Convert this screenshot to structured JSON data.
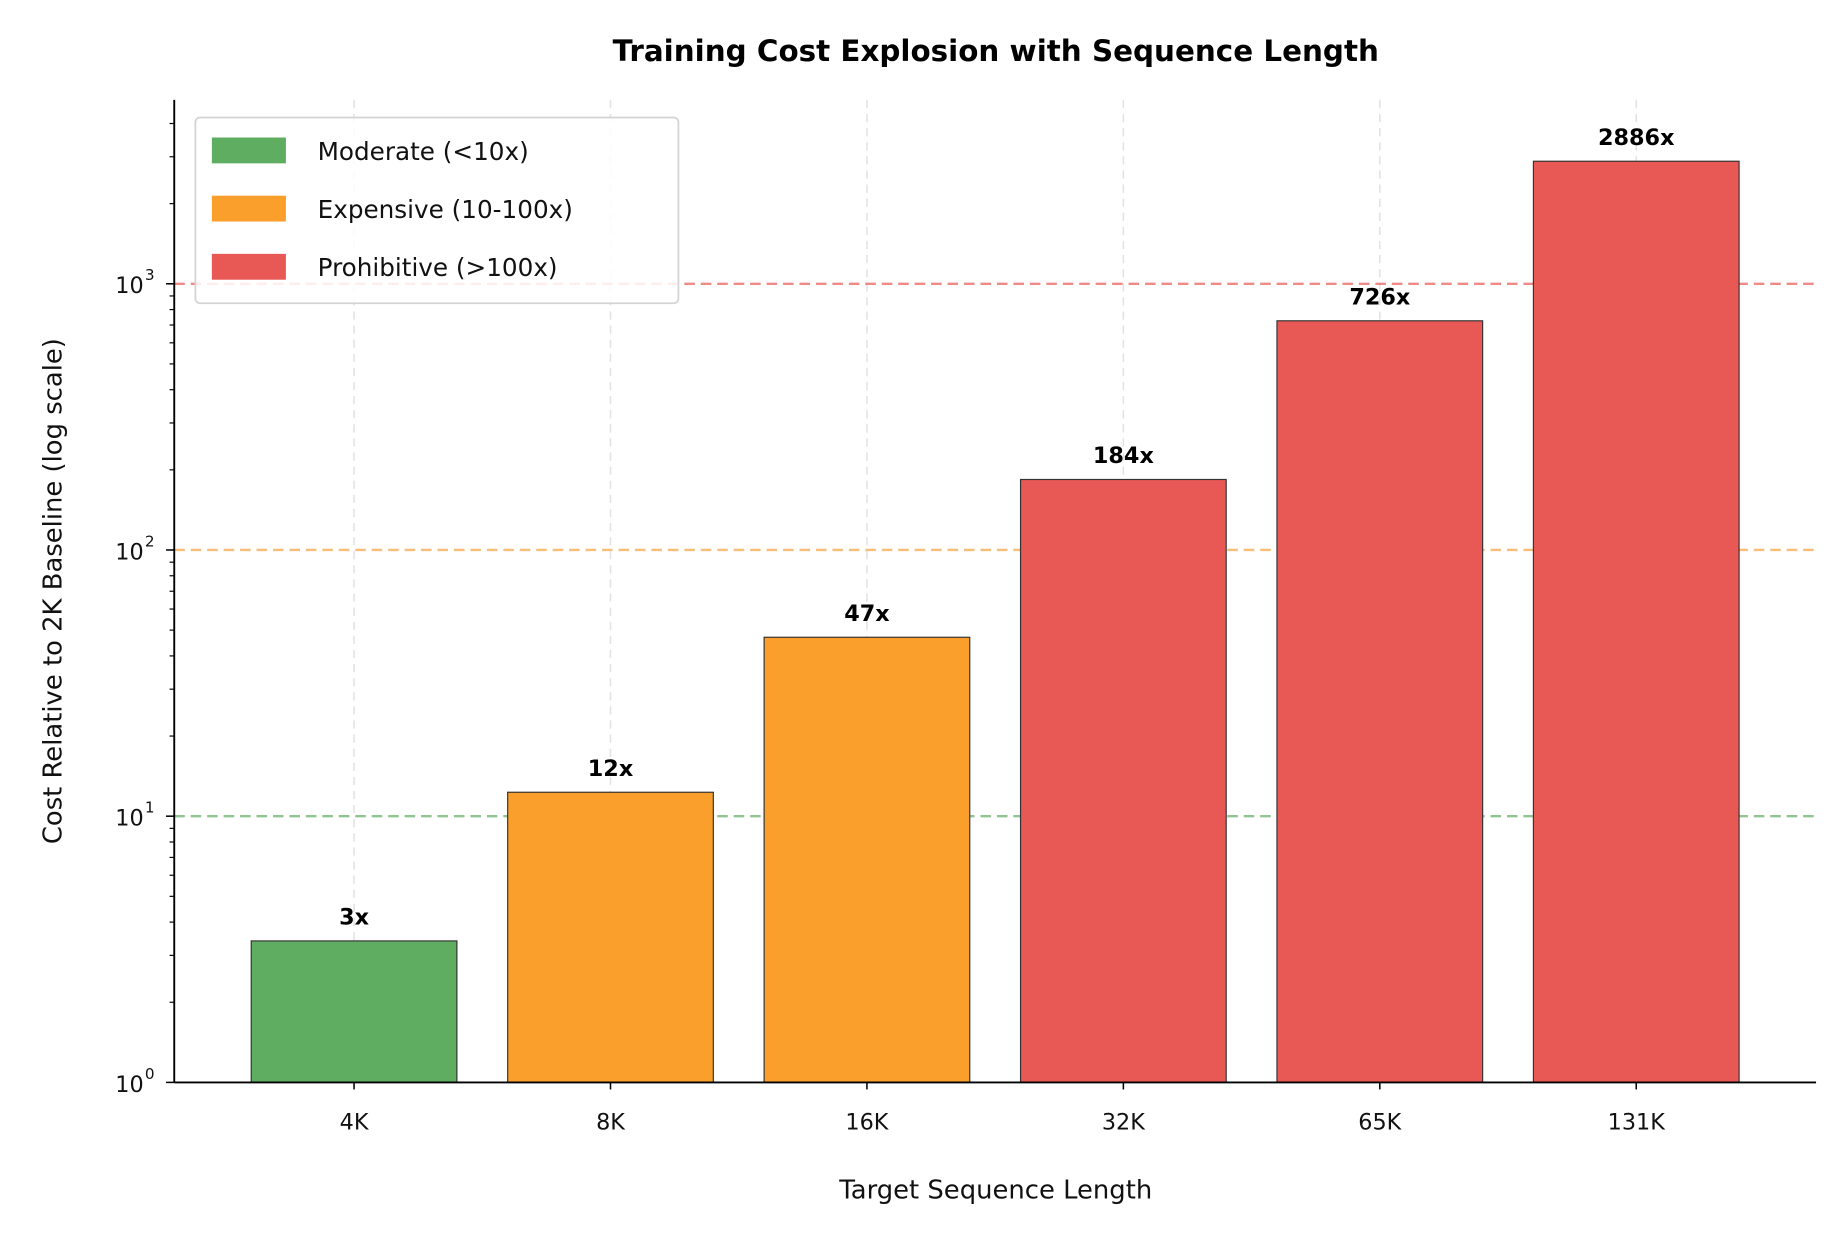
{
  "chart_data": {
    "type": "bar",
    "title": "Training Cost Explosion with Sequence Length",
    "xlabel": "Target Sequence Length",
    "ylabel": "Cost Relative to 2K Baseline (log scale)",
    "yscale": "log",
    "ylim": [
      1,
      4906
    ],
    "yticks": [
      {
        "value": 1,
        "base": "10",
        "exp": "0"
      },
      {
        "value": 10,
        "base": "10",
        "exp": "1"
      },
      {
        "value": 100,
        "base": "10",
        "exp": "2"
      },
      {
        "value": 1000,
        "base": "10",
        "exp": "3"
      }
    ],
    "categories": [
      "4K",
      "8K",
      "16K",
      "32K",
      "65K",
      "131K"
    ],
    "values": [
      3.4,
      12.3,
      47,
      184,
      726,
      2886
    ],
    "data_labels": [
      "3x",
      "12x",
      "47x",
      "184x",
      "726x",
      "2886x"
    ],
    "bar_tiers": [
      "moderate",
      "expensive",
      "expensive",
      "prohibitive",
      "prohibitive",
      "prohibitive"
    ],
    "threshold_lines": [
      {
        "value": 10,
        "color": "#5fad61"
      },
      {
        "value": 100,
        "color": "#f5a23a"
      },
      {
        "value": 1000,
        "color": "#e85855"
      }
    ],
    "grid": "x dashed",
    "legend": {
      "placement": "top-left",
      "entries": [
        {
          "key": "moderate",
          "label": "Moderate (<10x)",
          "color": "#5fad61"
        },
        {
          "key": "expensive",
          "label": "Expensive (10-100x)",
          "color": "#fa9f2b"
        },
        {
          "key": "prohibitive",
          "label": "Prohibitive (>100x)",
          "color": "#e85855"
        }
      ]
    }
  }
}
